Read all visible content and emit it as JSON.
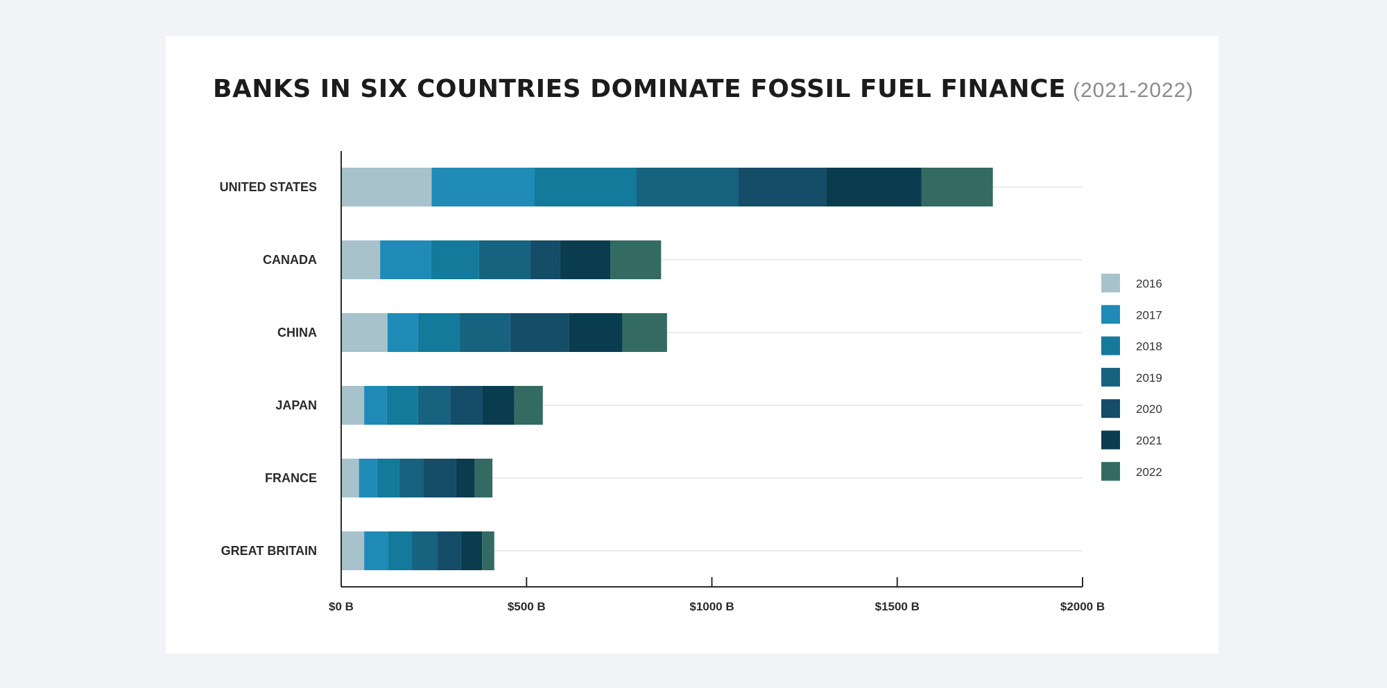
{
  "title": "BANKS IN SIX COUNTRIES DOMINATE FOSSIL FUEL FINANCE",
  "subtitle": "(2021-2022)",
  "chart_data": {
    "type": "bar",
    "orientation": "horizontal",
    "stacked": true,
    "categories": [
      "UNITED STATES",
      "CANADA",
      "CHINA",
      "JAPAN",
      "FRANCE",
      "GREAT BRITAIN"
    ],
    "series": [
      {
        "name": "2016",
        "color": "#a7c2cb",
        "values": [
          244,
          105,
          125,
          62,
          48,
          62
        ]
      },
      {
        "name": "2017",
        "color": "#1f8bb6",
        "values": [
          278,
          137,
          82,
          61,
          49,
          64
        ]
      },
      {
        "name": "2018",
        "color": "#137a9b",
        "values": [
          275,
          130,
          113,
          84,
          60,
          64
        ]
      },
      {
        "name": "2019",
        "color": "#16627f",
        "values": [
          274,
          138,
          136,
          87,
          64,
          69
        ]
      },
      {
        "name": "2020",
        "color": "#154c68",
        "values": [
          237,
          80,
          158,
          86,
          88,
          64
        ]
      },
      {
        "name": "2021",
        "color": "#0a3c4f",
        "values": [
          257,
          136,
          145,
          87,
          51,
          57
        ]
      },
      {
        "name": "2022",
        "color": "#336b63",
        "values": [
          193,
          137,
          120,
          77,
          48,
          33
        ]
      }
    ],
    "xlim": [
      0,
      2000
    ],
    "xticks": [
      0,
      500,
      1000,
      1500,
      2000
    ],
    "xtick_labels": [
      "$0 B",
      "$500 B",
      "$1000 B",
      "$1500 B",
      "$2000 B"
    ],
    "grid": "horizontal",
    "legend_position": "right"
  }
}
